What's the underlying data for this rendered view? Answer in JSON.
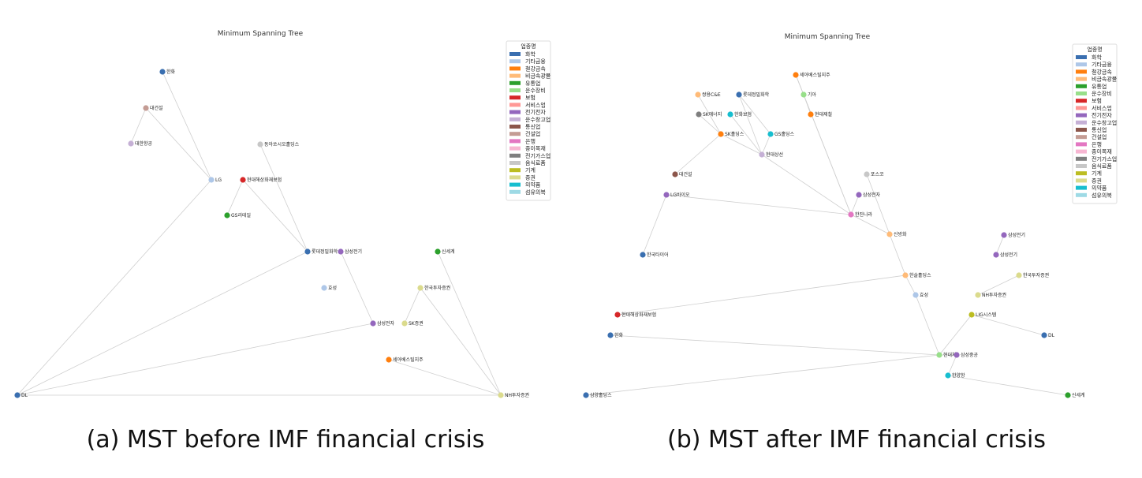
{
  "legend": {
    "title": "업종명",
    "categories": [
      {
        "name": "화학",
        "color": "#3a6fb0"
      },
      {
        "name": "기타금융",
        "color": "#aec7e8"
      },
      {
        "name": "철강금속",
        "color": "#ff7f0e"
      },
      {
        "name": "비금속광물",
        "color": "#ffbb78"
      },
      {
        "name": "유통업",
        "color": "#2ca02c"
      },
      {
        "name": "운수장비",
        "color": "#98df8a"
      },
      {
        "name": "보험",
        "color": "#d62728"
      },
      {
        "name": "서비스업",
        "color": "#ff9896"
      },
      {
        "name": "전기전자",
        "color": "#9467bd"
      },
      {
        "name": "운수창고업",
        "color": "#c5b0d5"
      },
      {
        "name": "통신업",
        "color": "#8c564b"
      },
      {
        "name": "건설업",
        "color": "#c49c94"
      },
      {
        "name": "은행",
        "color": "#e377c2"
      },
      {
        "name": "종이목재",
        "color": "#f7b6d2"
      },
      {
        "name": "전기가스업",
        "color": "#7f7f7f"
      },
      {
        "name": "음식료품",
        "color": "#c7c7c7"
      },
      {
        "name": "기계",
        "color": "#bcbd22"
      },
      {
        "name": "증권",
        "color": "#dbdb8d"
      },
      {
        "name": "의약품",
        "color": "#17becf"
      },
      {
        "name": "섬유의복",
        "color": "#9edae5"
      }
    ]
  },
  "panels": [
    {
      "id": "before",
      "title": "Minimum Spanning Tree",
      "caption": "(a) MST before IMF financial crisis",
      "nodes": [
        {
          "id": "hanwha",
          "label": "한화",
          "cat": "화학"
        },
        {
          "id": "daegunseol",
          "label": "대건설",
          "cat": "건설업"
        },
        {
          "id": "hanhanggong",
          "label": "대한항공",
          "cat": "운수창고업"
        },
        {
          "id": "lg",
          "label": "LG",
          "cat": "기타금융"
        },
        {
          "id": "dongaseo",
          "label": "동아쏘시오홀딩스",
          "cat": "음식료품"
        },
        {
          "id": "sonhae",
          "label": "현대해상화재보험",
          "cat": "보험"
        },
        {
          "id": "gsretail",
          "label": "GS리테일",
          "cat": "유통업"
        },
        {
          "id": "lotte",
          "label": "롯데정밀화학",
          "cat": "화학"
        },
        {
          "id": "samjeongi",
          "label": "삼성전기",
          "cat": "전기전자"
        },
        {
          "id": "sinsegye",
          "label": "신세계",
          "cat": "유통업"
        },
        {
          "id": "hyosung",
          "label": "효성",
          "cat": "기타금융"
        },
        {
          "id": "hanatuja",
          "label": "한국투자증권",
          "cat": "증권"
        },
        {
          "id": "samjeonja",
          "label": "삼성전자",
          "cat": "전기전자"
        },
        {
          "id": "skjeung",
          "label": "SK증권",
          "cat": "증권"
        },
        {
          "id": "sebeo",
          "label": "세아베스틸지주",
          "cat": "철강금속"
        },
        {
          "id": "dl",
          "label": "DL",
          "cat": "화학"
        },
        {
          "id": "nhtuja",
          "label": "NH투자증권",
          "cat": "증권"
        }
      ],
      "edges": [
        [
          "hanwha",
          "lg"
        ],
        [
          "lg",
          "dl"
        ],
        [
          "daegunseol",
          "hanhanggong"
        ],
        [
          "daegunseol",
          "lg"
        ],
        [
          "dongaseo",
          "lotte"
        ],
        [
          "sonhae",
          "gsretail"
        ],
        [
          "sonhae",
          "lotte"
        ],
        [
          "lotte",
          "dl"
        ],
        [
          "samjeongi",
          "samjeonja"
        ],
        [
          "samjeonja",
          "dl"
        ],
        [
          "dl",
          "nhtuja"
        ],
        [
          "sinsegye",
          "nhtuja"
        ],
        [
          "hanatuja",
          "nhtuja"
        ],
        [
          "hanatuja",
          "skjeung"
        ],
        [
          "sebeo",
          "nhtuja"
        ]
      ]
    },
    {
      "id": "after",
      "title": "Minimum Spanning Tree",
      "caption": "(b) MST after IMF financial crisis",
      "nodes": [
        {
          "id": "seahol",
          "label": "세아베스틸지주",
          "cat": "철강금속"
        },
        {
          "id": "kia",
          "label": "기아",
          "cat": "운수장비"
        },
        {
          "id": "hyundaisteel",
          "label": "현대제철",
          "cat": "철강금속"
        },
        {
          "id": "ssangyong",
          "label": "쌍용C&E",
          "cat": "비금속광물"
        },
        {
          "id": "lottechem",
          "label": "롯데정밀화학",
          "cat": "화학"
        },
        {
          "id": "sk_energy",
          "label": "SK에너지",
          "cat": "전기가스업"
        },
        {
          "id": "hanhwabo",
          "label": "한화보험",
          "cat": "의약품"
        },
        {
          "id": "sk_holdings",
          "label": "SK홀딩스",
          "cat": "철강금속"
        },
        {
          "id": "gs_holdings",
          "label": "GS홀딩스",
          "cat": "의약품"
        },
        {
          "id": "hyundaimerchant",
          "label": "현대상선",
          "cat": "운수창고업"
        },
        {
          "id": "daegun",
          "label": "대건설",
          "cat": "통신업"
        },
        {
          "id": "lgbio",
          "label": "LG바이오",
          "cat": "전기전자"
        },
        {
          "id": "hankook_tire",
          "label": "한국타이어",
          "cat": "화학"
        },
        {
          "id": "pohang",
          "label": "포스코",
          "cat": "음식료품"
        },
        {
          "id": "samsung_jeonja2",
          "label": "삼성전자",
          "cat": "전기전자"
        },
        {
          "id": "hannara",
          "label": "한진나라",
          "cat": "은행"
        },
        {
          "id": "sinbang",
          "label": "신방화",
          "cat": "비금속광물"
        },
        {
          "id": "kholdings",
          "label": "한솔홀딩스",
          "cat": "비금속광물"
        },
        {
          "id": "hyosung2",
          "label": "효성",
          "cat": "기타금융"
        },
        {
          "id": "hyundaisonhae",
          "label": "현대해상화재보험",
          "cat": "보험"
        },
        {
          "id": "hanwha2",
          "label": "한화",
          "cat": "화학"
        },
        {
          "id": "hyundaimotor",
          "label": "현대차",
          "cat": "운수장비"
        },
        {
          "id": "samsunghevy",
          "label": "삼성중공",
          "cat": "전기전자"
        },
        {
          "id": "hanyang",
          "label": "한양항",
          "cat": "의약품"
        },
        {
          "id": "samholdings",
          "label": "삼양홀딩스",
          "cat": "화학"
        },
        {
          "id": "sinsegye2",
          "label": "신세계",
          "cat": "유통업"
        },
        {
          "id": "sandeung",
          "label": "삼성전기",
          "cat": "전기전자"
        },
        {
          "id": "samsungjeongi",
          "label": "삼성전기",
          "cat": "전기전자"
        },
        {
          "id": "hanatuja2",
          "label": "한국투자증권",
          "cat": "증권"
        },
        {
          "id": "nhtuja2",
          "label": "NH투자증권",
          "cat": "증권"
        },
        {
          "id": "system",
          "label": "LIG시스템",
          "cat": "기계"
        },
        {
          "id": "dl2",
          "label": "DL",
          "cat": "화학"
        }
      ],
      "edges": [
        [
          "seahol",
          "kia"
        ],
        [
          "seahol",
          "hyosung_link"
        ],
        [
          "kia",
          "hannara"
        ],
        [
          "hyundaisteel",
          "kia"
        ],
        [
          "ssangyong",
          "sk_holdings"
        ],
        [
          "lottechem",
          "gs_holdings"
        ],
        [
          "lottechem",
          "hyundaimerchant"
        ],
        [
          "sk_energy",
          "sk_holdings"
        ],
        [
          "hanhwabo",
          "hyundaimerchant"
        ],
        [
          "gs_holdings",
          "hyundaimerchant"
        ],
        [
          "sk_holdings",
          "hyundaimerchant"
        ],
        [
          "sk_holdings",
          "daegun"
        ],
        [
          "hyundaimerchant",
          "hannara"
        ],
        [
          "lgbio",
          "hannara"
        ],
        [
          "lgbio",
          "hankook_tire"
        ],
        [
          "pohang",
          "sinbang"
        ],
        [
          "samsung_jeonja2",
          "hannara"
        ],
        [
          "hannara",
          "sinbang"
        ],
        [
          "sinbang",
          "kholdings"
        ],
        [
          "kholdings",
          "hyosung2"
        ],
        [
          "kholdings",
          "hyundaisonhae"
        ],
        [
          "hyosung2",
          "hyundaimotor"
        ],
        [
          "hanwha2",
          "hyundaimotor"
        ],
        [
          "hyundaimotor",
          "samsunghevy"
        ],
        [
          "hyundaimotor",
          "samholdings"
        ],
        [
          "samsunghevy",
          "hanyang"
        ],
        [
          "hanyang",
          "sinsegye2"
        ],
        [
          "hyundaimotor",
          "system"
        ],
        [
          "system",
          "dl2"
        ],
        [
          "sandeung",
          "samsungjeongi"
        ],
        [
          "hanatuja2",
          "nhtuja2"
        ]
      ]
    }
  ]
}
